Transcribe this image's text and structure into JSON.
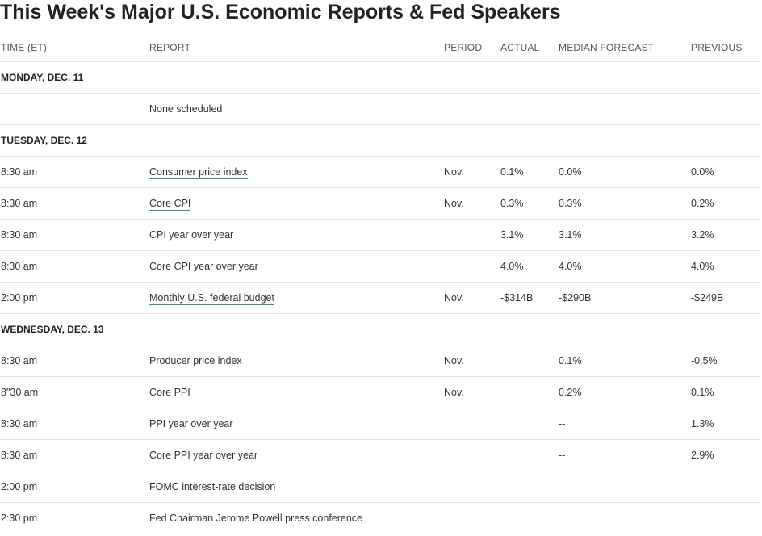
{
  "title": "This Week's Major U.S. Economic Reports & Fed Speakers",
  "columns": {
    "time": "TIME (ET)",
    "report": "REPORT",
    "period": "PERIOD",
    "actual": "ACTUAL",
    "median": "MEDIAN FORECAST",
    "previous": "PREVIOUS"
  },
  "days": [
    {
      "label": "MONDAY, DEC. 11",
      "rows": [
        {
          "time": "",
          "report": "None scheduled",
          "link": false,
          "period": "",
          "actual": "",
          "median": "",
          "previous": ""
        }
      ]
    },
    {
      "label": "TUESDAY, DEC. 12",
      "rows": [
        {
          "time": "8:30 am",
          "report": "Consumer price index",
          "link": true,
          "period": "Nov.",
          "actual": "0.1%",
          "median": "0.0%",
          "previous": "0.0%"
        },
        {
          "time": "8:30 am",
          "report": "Core CPI",
          "link": true,
          "period": "Nov.",
          "actual": "0.3%",
          "median": "0.3%",
          "previous": "0.2%"
        },
        {
          "time": "8:30 am",
          "report": "CPI year over year",
          "link": false,
          "period": "",
          "actual": "3.1%",
          "median": "3.1%",
          "previous": "3.2%"
        },
        {
          "time": "8:30 am",
          "report": "Core CPI year over year",
          "link": false,
          "period": "",
          "actual": "4.0%",
          "median": "4.0%",
          "previous": "4.0%"
        },
        {
          "time": "2:00 pm",
          "report": "Monthly U.S. federal budget",
          "link": true,
          "period": "Nov.",
          "actual": "-$314B",
          "median": "-$290B",
          "previous": "-$249B"
        }
      ]
    },
    {
      "label": "WEDNESDAY, DEC. 13",
      "rows": [
        {
          "time": "8:30 am",
          "report": "Producer price index",
          "link": false,
          "period": "Nov.",
          "actual": "",
          "median": "0.1%",
          "previous": "-0.5%"
        },
        {
          "time": "8\"30 am",
          "report": "Core PPI",
          "link": false,
          "period": "Nov.",
          "actual": "",
          "median": "0.2%",
          "previous": "0.1%"
        },
        {
          "time": "8:30 am",
          "report": "PPI year over year",
          "link": false,
          "period": "",
          "actual": "",
          "median": "--",
          "previous": "1.3%"
        },
        {
          "time": "8:30 am",
          "report": "Core PPI year over year",
          "link": false,
          "period": "",
          "actual": "",
          "median": "--",
          "previous": "2.9%"
        },
        {
          "time": "2:00 pm",
          "report": "FOMC interest-rate decision",
          "link": false,
          "period": "",
          "actual": "",
          "median": "",
          "previous": ""
        },
        {
          "time": "2:30 pm",
          "report": "Fed Chairman Jerome Powell press conference",
          "link": false,
          "period": "",
          "actual": "",
          "median": "",
          "previous": ""
        }
      ]
    }
  ]
}
